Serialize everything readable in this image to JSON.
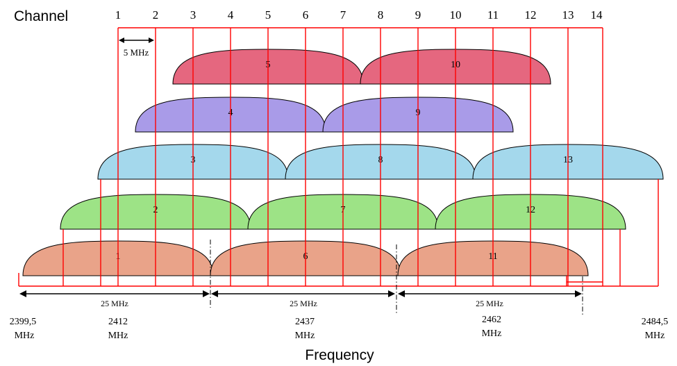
{
  "title": "Channel",
  "x_axis_label": "Frequency",
  "channel_numbers": [
    "1",
    "2",
    "3",
    "4",
    "5",
    "6",
    "7",
    "8",
    "9",
    "10",
    "11",
    "12",
    "13",
    "14"
  ],
  "spacing_label": "5 MHz",
  "bandwidth_label": "25 MHz",
  "frequency_labels": [
    {
      "value": "2399,5",
      "unit": "MHz"
    },
    {
      "value": "2412",
      "unit": "MHz"
    },
    {
      "value": "2437",
      "unit": "MHz"
    },
    {
      "value": "2462",
      "unit": "MHz"
    },
    {
      "value": "2484,5",
      "unit": "MHz"
    }
  ],
  "rows": [
    {
      "color": "#e5677f",
      "channels": [
        {
          "label": "5"
        },
        {
          "label": "10"
        }
      ]
    },
    {
      "color": "#a99be8",
      "channels": [
        {
          "label": "4"
        },
        {
          "label": "9"
        }
      ]
    },
    {
      "color": "#a4d8ec",
      "channels": [
        {
          "label": "3"
        },
        {
          "label": "8"
        },
        {
          "label": "13"
        }
      ]
    },
    {
      "color": "#9de386",
      "channels": [
        {
          "label": "2"
        },
        {
          "label": "7"
        },
        {
          "label": "12"
        }
      ]
    },
    {
      "color": "#e9a389",
      "channels": [
        {
          "label": "1"
        },
        {
          "label": "6"
        },
        {
          "label": "11"
        }
      ]
    }
  ],
  "line_color": "#ff0000"
}
